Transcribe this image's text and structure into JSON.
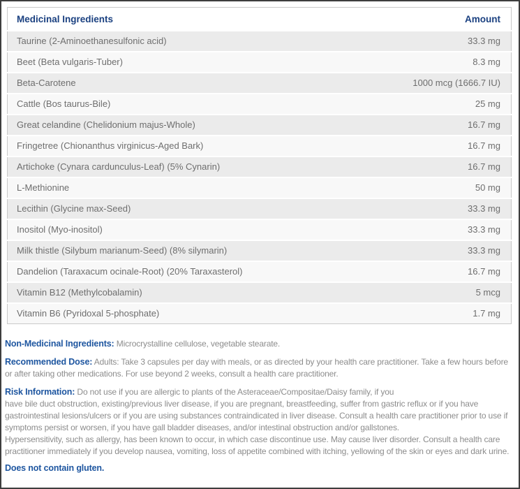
{
  "table": {
    "header": {
      "ingredient": "Medicinal Ingredients",
      "amount": "Amount"
    },
    "rows": [
      {
        "name": "Taurine (2-Aminoethanesulfonic acid)",
        "amount": "33.3 mg"
      },
      {
        "name": "Beet (Beta vulgaris-Tuber)",
        "amount": "8.3 mg"
      },
      {
        "name": "Beta-Carotene",
        "amount": "1000 mcg (1666.7 IU)"
      },
      {
        "name": "Cattle (Bos taurus-Bile)",
        "amount": "25 mg"
      },
      {
        "name": "Great celandine (Chelidonium majus-Whole)",
        "amount": "16.7 mg"
      },
      {
        "name": "Fringetree (Chionanthus virginicus-Aged Bark)",
        "amount": "16.7 mg"
      },
      {
        "name": "Artichoke (Cynara cardunculus-Leaf) (5% Cynarin)",
        "amount": "16.7 mg"
      },
      {
        "name": "L-Methionine",
        "amount": "50 mg"
      },
      {
        "name": "Lecithin (Glycine max-Seed)",
        "amount": "33.3 mg"
      },
      {
        "name": "Inositol (Myo-inositol)",
        "amount": "33.3 mg"
      },
      {
        "name": "Milk thistle (Silybum marianum-Seed) (8% silymarin)",
        "amount": "33.3 mg"
      },
      {
        "name": "Dandelion (Taraxacum ocinale-Root) (20% Taraxasterol)",
        "amount": "16.7 mg"
      },
      {
        "name": "Vitamin B12 (Methylcobalamin)",
        "amount": "5 mcg"
      },
      {
        "name": "Vitamin B6 (Pyridoxal 5-phosphate)",
        "amount": "1.7 mg"
      }
    ]
  },
  "sections": {
    "non_medicinal": {
      "label": "Non-Medicinal Ingredients:",
      "text": "Microcrystalline cellulose, vegetable stearate."
    },
    "recommended_dose": {
      "label": "Recommended Dose:",
      "text": "Adults: Take 3 capsules per day with meals, or as directed by your health care practitioner. Take a few hours before or after taking other medications. For use beyond 2 weeks, consult a health care practitioner."
    },
    "risk_information": {
      "label": "Risk Information:",
      "text": "Do not use if you are allergic to plants of the Asteraceae/Compositae/Daisy family, if you\nhave bile duct obstruction, existing/previous liver disease, if you are pregnant, breastfeeding, suffer from gastric reflux or if you have gastrointestinal lesions/ulcers or if you are using substances contraindicated in liver disease. Consult a health care practitioner prior to use if symptoms persist or worsen, if you have gall bladder diseases, and/or intestinal obstruction and/or gallstones.\nHypersensitivity, such as allergy, has been known to occur, in which case discontinue use. May cause liver disorder. Consult a health care practitioner immediately if you develop nausea, vomiting, loss of appetite combined with itching, yellowing of the skin or eyes and dark urine."
    },
    "gluten": {
      "text": "Does not contain gluten."
    }
  },
  "colors": {
    "page_border": "#3e3e3e",
    "table_border": "#c9c9c9",
    "header_text": "#1a4080",
    "row_text": "#6e6e6e",
    "row_odd_bg": "#ebebeb",
    "row_even_bg": "#f8f8f8",
    "section_label": "#1e56a0",
    "section_text": "#8c8c8c"
  }
}
